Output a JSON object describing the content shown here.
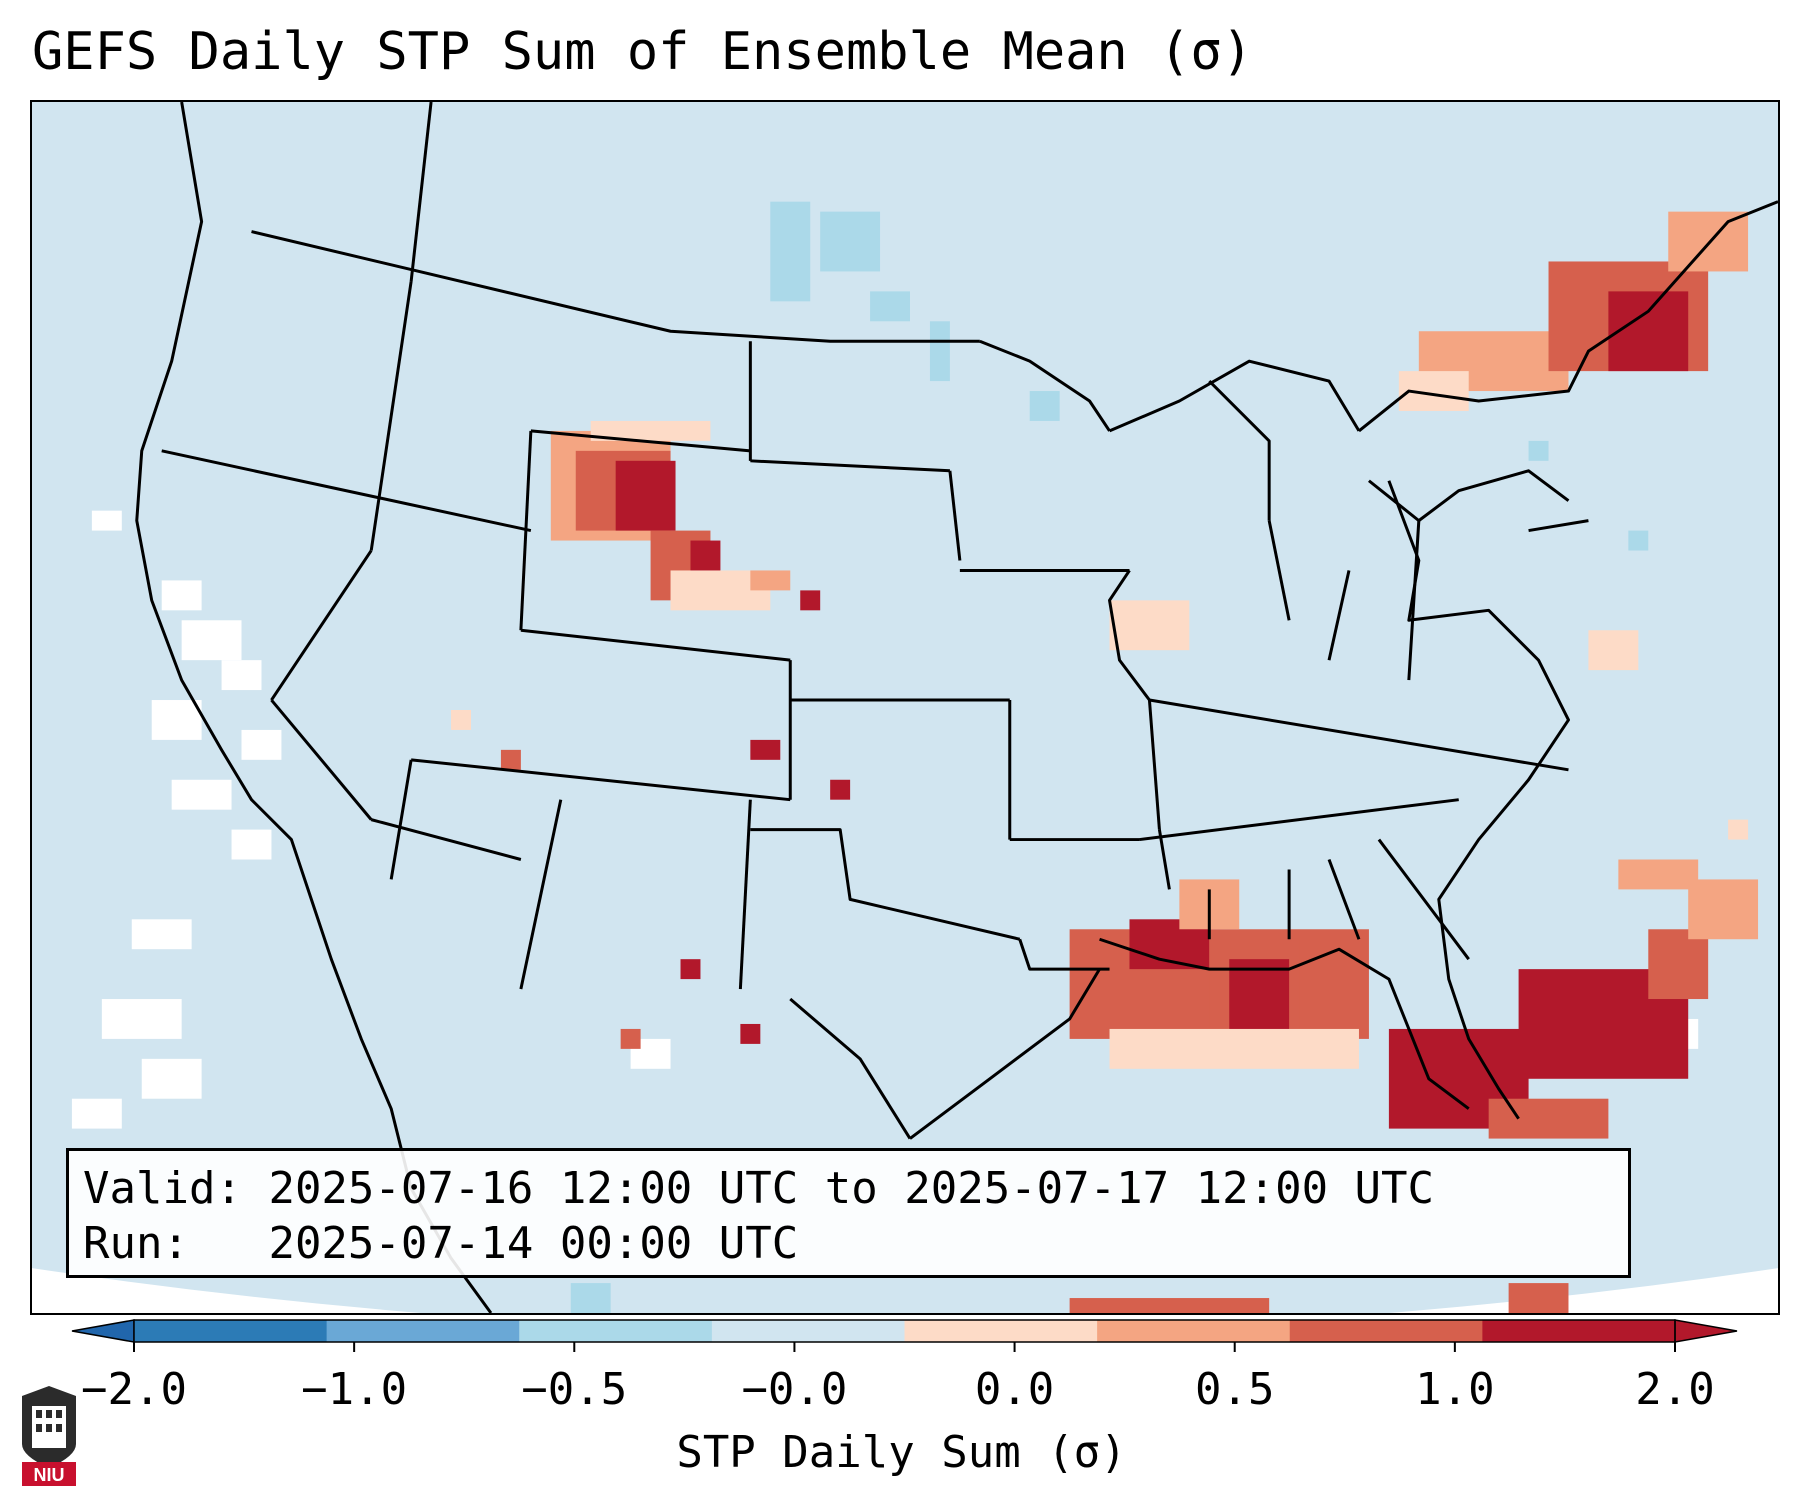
{
  "title": "GEFS Daily STP Sum of Ensemble Mean (σ)",
  "info": {
    "valid_label": "Valid:",
    "valid_value": "2025-07-16 12:00 UTC to 2025-07-17 12:00 UTC",
    "run_label": "Run:",
    "run_value": "2025-07-14 00:00 UTC"
  },
  "colorbar": {
    "label": "STP Daily Sum (σ)",
    "ticks": [
      "−2.0",
      "−1.0",
      "−0.5",
      "−0.0",
      "0.0",
      "0.5",
      "1.0",
      "2.0"
    ],
    "colors": [
      "#2c7bb6",
      "#6aa8d6",
      "#abd9e9",
      "#d1e5f0",
      "#fddbc7",
      "#f4a582",
      "#d6604d",
      "#b2182b"
    ],
    "under_color": "#2166ac",
    "over_color": "#b2182b"
  },
  "map_colors": {
    "ocean": "#d1e5f0",
    "land": "#d1e5f0",
    "borders": "#000000"
  },
  "logo_text": "NIU"
}
